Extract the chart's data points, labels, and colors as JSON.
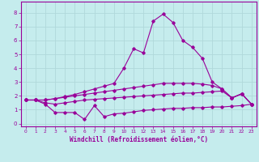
{
  "xlabel": "Windchill (Refroidissement éolien,°C)",
  "background_color": "#c5eced",
  "grid_color": "#b0d8da",
  "line_color": "#990099",
  "xlim": [
    -0.5,
    23.5
  ],
  "ylim": [
    -0.2,
    8.8
  ],
  "xticks": [
    0,
    1,
    2,
    3,
    4,
    5,
    6,
    7,
    8,
    9,
    10,
    11,
    12,
    13,
    14,
    15,
    16,
    17,
    18,
    19,
    20,
    21,
    22,
    23
  ],
  "yticks": [
    0,
    1,
    2,
    3,
    4,
    5,
    6,
    7,
    8
  ],
  "line_jagged_x": [
    0,
    1,
    2,
    3,
    4,
    5,
    6,
    7,
    8,
    9,
    10,
    11,
    12,
    13,
    14,
    15,
    16,
    17,
    18,
    19,
    20,
    21,
    22,
    23
  ],
  "line_jagged_y": [
    1.7,
    1.7,
    1.4,
    0.8,
    0.8,
    0.8,
    0.3,
    1.3,
    0.5,
    0.7,
    0.75,
    0.85,
    0.95,
    1.0,
    1.05,
    1.1,
    1.1,
    1.15,
    1.15,
    1.2,
    1.2,
    1.25,
    1.3,
    1.4
  ],
  "line_low_x": [
    0,
    1,
    2,
    3,
    4,
    5,
    6,
    7,
    8,
    9,
    10,
    11,
    12,
    13,
    14,
    15,
    16,
    17,
    18,
    19,
    20,
    21,
    22,
    23
  ],
  "line_low_y": [
    1.7,
    1.7,
    1.5,
    1.4,
    1.5,
    1.6,
    1.7,
    1.75,
    1.8,
    1.85,
    1.9,
    1.95,
    2.0,
    2.05,
    2.1,
    2.15,
    2.2,
    2.2,
    2.25,
    2.3,
    2.35,
    1.85,
    2.15,
    1.4
  ],
  "line_mid_x": [
    0,
    1,
    2,
    3,
    4,
    5,
    6,
    7,
    8,
    9,
    10,
    11,
    12,
    13,
    14,
    15,
    16,
    17,
    18,
    19,
    20,
    21,
    22,
    23
  ],
  "line_mid_y": [
    1.7,
    1.7,
    1.7,
    1.8,
    1.9,
    2.0,
    2.1,
    2.2,
    2.3,
    2.4,
    2.5,
    2.6,
    2.7,
    2.8,
    2.9,
    2.9,
    2.9,
    2.9,
    2.85,
    2.75,
    2.5,
    1.85,
    2.15,
    1.4
  ],
  "line_top_x": [
    0,
    1,
    2,
    3,
    4,
    5,
    6,
    7,
    8,
    9,
    10,
    11,
    12,
    13,
    14,
    15,
    16,
    17,
    18,
    19,
    20,
    21,
    22,
    23
  ],
  "line_top_y": [
    1.7,
    1.7,
    1.7,
    1.8,
    1.95,
    2.1,
    2.3,
    2.5,
    2.7,
    2.9,
    4.0,
    5.4,
    5.1,
    7.4,
    7.9,
    7.3,
    6.0,
    5.5,
    4.7,
    3.0,
    2.5,
    1.85,
    2.15,
    1.4
  ]
}
